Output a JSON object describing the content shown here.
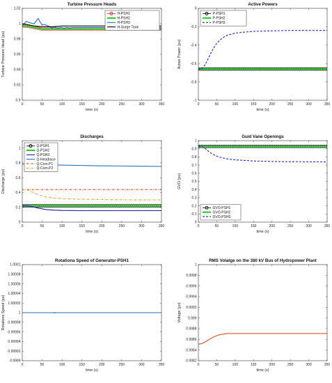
{
  "chart_data": [
    {
      "type": "line",
      "title": "Turbine Pressure Heads",
      "xlabel": "time (s)",
      "ylabel": "Turbine Pressure Head (pu)",
      "xlim": [
        0,
        350
      ],
      "ylim": [
        0.9,
        1.02
      ],
      "xticks": [
        0,
        50,
        100,
        150,
        200,
        250,
        300,
        350
      ],
      "yticks": [
        0.9,
        0.92,
        0.94,
        0.96,
        0.98,
        1,
        1.02
      ],
      "ytick_labels": [
        "0.9",
        "0.92",
        "0.94",
        "0.96",
        "0.98",
        "1",
        "1.02"
      ],
      "legend": "top-right",
      "series": [
        {
          "name": "H-PSH1",
          "color": "#e8262a",
          "style": "circles",
          "x": [
            0,
            10,
            20,
            30,
            40,
            50,
            75,
            100,
            150,
            200,
            250,
            300,
            350
          ],
          "y": [
            0.997,
            0.997,
            0.996,
            0.995,
            0.994,
            0.993,
            0.993,
            0.993,
            0.993,
            0.993,
            0.993,
            0.993,
            0.993
          ]
        },
        {
          "name": "H-PSH2",
          "color": "#2ccf2c",
          "style": "thick",
          "x": [
            0,
            10,
            20,
            30,
            40,
            50,
            75,
            100,
            150,
            200,
            250,
            300,
            350
          ],
          "y": [
            0.997,
            0.997,
            0.996,
            0.995,
            0.994,
            0.993,
            0.993,
            0.993,
            0.993,
            0.993,
            0.993,
            0.993,
            0.993
          ]
        },
        {
          "name": "H-PSH3",
          "color": "#1f6fc0",
          "style": "line",
          "x": [
            0,
            5,
            10,
            20,
            30,
            40,
            45,
            50,
            55,
            60,
            65,
            70,
            75,
            80,
            85,
            90,
            95,
            100,
            105,
            110,
            115,
            120,
            125,
            130,
            140,
            150,
            200,
            250,
            300,
            350
          ],
          "y": [
            0.998,
            1.0,
            1.003,
            1.001,
            1.0,
            1.007,
            1.002,
            0.998,
            0.999,
            0.998,
            0.997,
            0.996,
            0.994,
            0.996,
            0.995,
            0.994,
            0.995,
            0.995,
            0.993,
            0.995,
            0.995,
            0.994,
            0.995,
            0.995,
            0.995,
            0.995,
            0.995,
            0.995,
            0.995,
            0.995
          ]
        },
        {
          "name": "H-Surge Tank",
          "color": "#000000",
          "style": "line",
          "x": [
            0,
            10,
            20,
            30,
            50,
            75,
            100,
            150,
            200,
            250,
            300,
            350
          ],
          "y": [
            1.0,
            0.999,
            0.998,
            0.997,
            0.996,
            0.996,
            0.997,
            0.997,
            0.997,
            0.997,
            0.997,
            0.997
          ]
        }
      ]
    },
    {
      "type": "line",
      "title": "Active Powers",
      "xlabel": "time (s)",
      "ylabel": "Active Power (pu)",
      "xlim": [
        0,
        350
      ],
      "ylim": [
        -1,
        0
      ],
      "xticks": [
        0,
        50,
        100,
        150,
        200,
        250,
        300,
        350
      ],
      "yticks": [
        -1,
        -0.8,
        -0.6,
        -0.4,
        -0.2,
        0
      ],
      "ytick_labels": [
        "-1",
        "-0.8",
        "-0.6",
        "-0.4",
        "-0.2",
        "0"
      ],
      "legend": "top-left",
      "series": [
        {
          "name": "P-PSH1",
          "color": "#000000",
          "style": "circles",
          "x": [
            0,
            350
          ],
          "y": [
            -0.66,
            -0.66
          ]
        },
        {
          "name": "P-PSH2",
          "color": "#2ccf2c",
          "style": "thick",
          "x": [
            0,
            350
          ],
          "y": [
            -0.66,
            -0.66
          ]
        },
        {
          "name": "P-PSH3",
          "color": "#1e28c8",
          "style": "dashed",
          "x": [
            0,
            10,
            20,
            30,
            40,
            50,
            60,
            70,
            80,
            100,
            120,
            150,
            200,
            250,
            300,
            350
          ],
          "y": [
            -0.66,
            -0.66,
            -0.6,
            -0.52,
            -0.44,
            -0.38,
            -0.34,
            -0.31,
            -0.29,
            -0.27,
            -0.26,
            -0.25,
            -0.245,
            -0.24,
            -0.24,
            -0.24
          ]
        }
      ]
    },
    {
      "type": "line",
      "title": "Discharges",
      "xlabel": "time (s)",
      "ylabel": "Discharge (pu)",
      "xlim": [
        0,
        350
      ],
      "ylim": [
        0,
        1.1
      ],
      "xticks": [
        0,
        50,
        100,
        150,
        200,
        250,
        300,
        350
      ],
      "yticks": [
        0,
        0.2,
        0.4,
        0.6,
        0.8,
        1
      ],
      "ytick_labels": [
        "0",
        "0.2",
        "0.4",
        "0.6",
        "0.8",
        "1"
      ],
      "legend": "top-left",
      "series": [
        {
          "name": "Q-PSH1",
          "color": "#000000",
          "style": "circles",
          "x": [
            0,
            350
          ],
          "y": [
            0.22,
            0.22
          ]
        },
        {
          "name": "Q-PSH2",
          "color": "#2ccf2c",
          "style": "thick",
          "x": [
            0,
            350
          ],
          "y": [
            0.22,
            0.22
          ]
        },
        {
          "name": "Q-PSH3",
          "color": "#1a1aa8",
          "style": "line",
          "x": [
            0,
            20,
            40,
            60,
            80,
            100,
            150,
            200,
            250,
            300,
            350
          ],
          "y": [
            0.22,
            0.215,
            0.19,
            0.17,
            0.162,
            0.158,
            0.155,
            0.155,
            0.155,
            0.155,
            0.155
          ]
        },
        {
          "name": "Q-Headrace",
          "color": "#1f6fc0",
          "style": "line",
          "x": [
            0,
            50,
            100,
            150,
            200,
            250,
            300,
            350
          ],
          "y": [
            0.785,
            0.775,
            0.77,
            0.765,
            0.76,
            0.758,
            0.755,
            0.752
          ]
        },
        {
          "name": "Q-Com.P1",
          "color": "#d04a15",
          "style": "dashdot",
          "x": [
            0,
            350
          ],
          "y": [
            0.44,
            0.44
          ]
        },
        {
          "name": "Q-Com.P2",
          "color": "#e0a020",
          "style": "dashdot",
          "x": [
            0,
            10,
            20,
            40,
            60,
            80,
            100,
            150,
            200,
            250,
            300,
            350
          ],
          "y": [
            0.44,
            0.44,
            0.42,
            0.37,
            0.34,
            0.325,
            0.318,
            0.31,
            0.305,
            0.302,
            0.3,
            0.3
          ]
        }
      ]
    },
    {
      "type": "line",
      "title": "Guid Vane Openings",
      "xlabel": "time (s)",
      "ylabel": "GVO (pu)",
      "xlim": [
        0,
        350
      ],
      "ylim": [
        0,
        1
      ],
      "xticks": [
        0,
        50,
        100,
        150,
        200,
        250,
        300,
        350
      ],
      "yticks": [
        0,
        0.1,
        0.2,
        0.3,
        0.4,
        0.5,
        0.6,
        0.7,
        0.8,
        0.9,
        1
      ],
      "ytick_labels": [
        "0",
        "0.1",
        "0.2",
        "0.3",
        "0.4",
        "0.5",
        "0.6",
        "0.7",
        "0.8",
        "0.9",
        "1"
      ],
      "legend": "bottom-left",
      "series": [
        {
          "name": "GVO-PSH1",
          "color": "#000000",
          "style": "circles",
          "x": [
            0,
            350
          ],
          "y": [
            0.93,
            0.93
          ]
        },
        {
          "name": "GVO-PSH2",
          "color": "#2ccf2c",
          "style": "thick",
          "x": [
            0,
            350
          ],
          "y": [
            0.93,
            0.93
          ]
        },
        {
          "name": "GVO-PSH3",
          "color": "#1e28c8",
          "style": "dashed",
          "x": [
            0,
            10,
            20,
            30,
            40,
            50,
            60,
            80,
            100,
            150,
            200,
            250,
            300,
            350
          ],
          "y": [
            0.93,
            0.93,
            0.9,
            0.86,
            0.83,
            0.81,
            0.795,
            0.775,
            0.765,
            0.75,
            0.745,
            0.742,
            0.741,
            0.74
          ]
        }
      ]
    },
    {
      "type": "line",
      "title": "Rotationa Speed of Generator-PSH1",
      "xlabel": "time (s)",
      "ylabel": "Rotations Speed (pu)",
      "xlim": [
        0,
        350
      ],
      "ylim": [
        0.9999,
        1.0001
      ],
      "xticks": [
        0,
        50,
        100,
        150,
        200,
        250,
        300,
        350
      ],
      "yticks": [
        0.9999,
        0.99992,
        0.99994,
        0.99996,
        0.99998,
        1,
        1.00002,
        1.00004,
        1.00006,
        1.00008,
        1.0001
      ],
      "ytick_labels": [
        "0.9999",
        "0.99992",
        "0.99994",
        "0.99996",
        "0.99998",
        "1",
        "1.00002",
        "1.00004",
        "1.00006",
        "1.00008",
        "1.0001"
      ],
      "legend": "none",
      "series": [
        {
          "color": "#1f6fc0",
          "style": "line",
          "x": [
            0,
            78,
            80,
            82,
            84,
            350
          ],
          "y": [
            1,
            1,
            1.0000008,
            0.9999992,
            1,
            1
          ]
        }
      ]
    },
    {
      "type": "line",
      "title": "RMS Volatge on the 380 kV Bus of Hydropower Plant",
      "xlabel": "time (s)",
      "ylabel": "Voltage (pu)",
      "xlim": [
        0,
        350
      ],
      "ylim": [
        0.9982,
        1
      ],
      "xticks": [
        0,
        50,
        100,
        150,
        200,
        250,
        300,
        350
      ],
      "yticks": [
        0.9982,
        0.9984,
        0.9986,
        0.9988,
        0.999,
        0.9992,
        0.9994,
        0.9996,
        0.9998,
        1
      ],
      "ytick_labels": [
        "0.9982",
        "0.9984",
        "0.9986",
        "0.9988",
        "0.999",
        "0.9992",
        "0.9994",
        "0.9996",
        "0.9998",
        "1"
      ],
      "legend": "none",
      "series": [
        {
          "color": "#d9531a",
          "style": "line",
          "x": [
            0,
            10,
            20,
            30,
            40,
            50,
            60,
            70,
            80,
            100,
            150,
            200,
            250,
            300,
            350
          ],
          "y": [
            0.99851,
            0.99852,
            0.99856,
            0.9986,
            0.99864,
            0.99867,
            0.99869,
            0.9987,
            0.99871,
            0.99871,
            0.99871,
            0.99871,
            0.99871,
            0.99871,
            0.99871
          ]
        }
      ]
    }
  ]
}
